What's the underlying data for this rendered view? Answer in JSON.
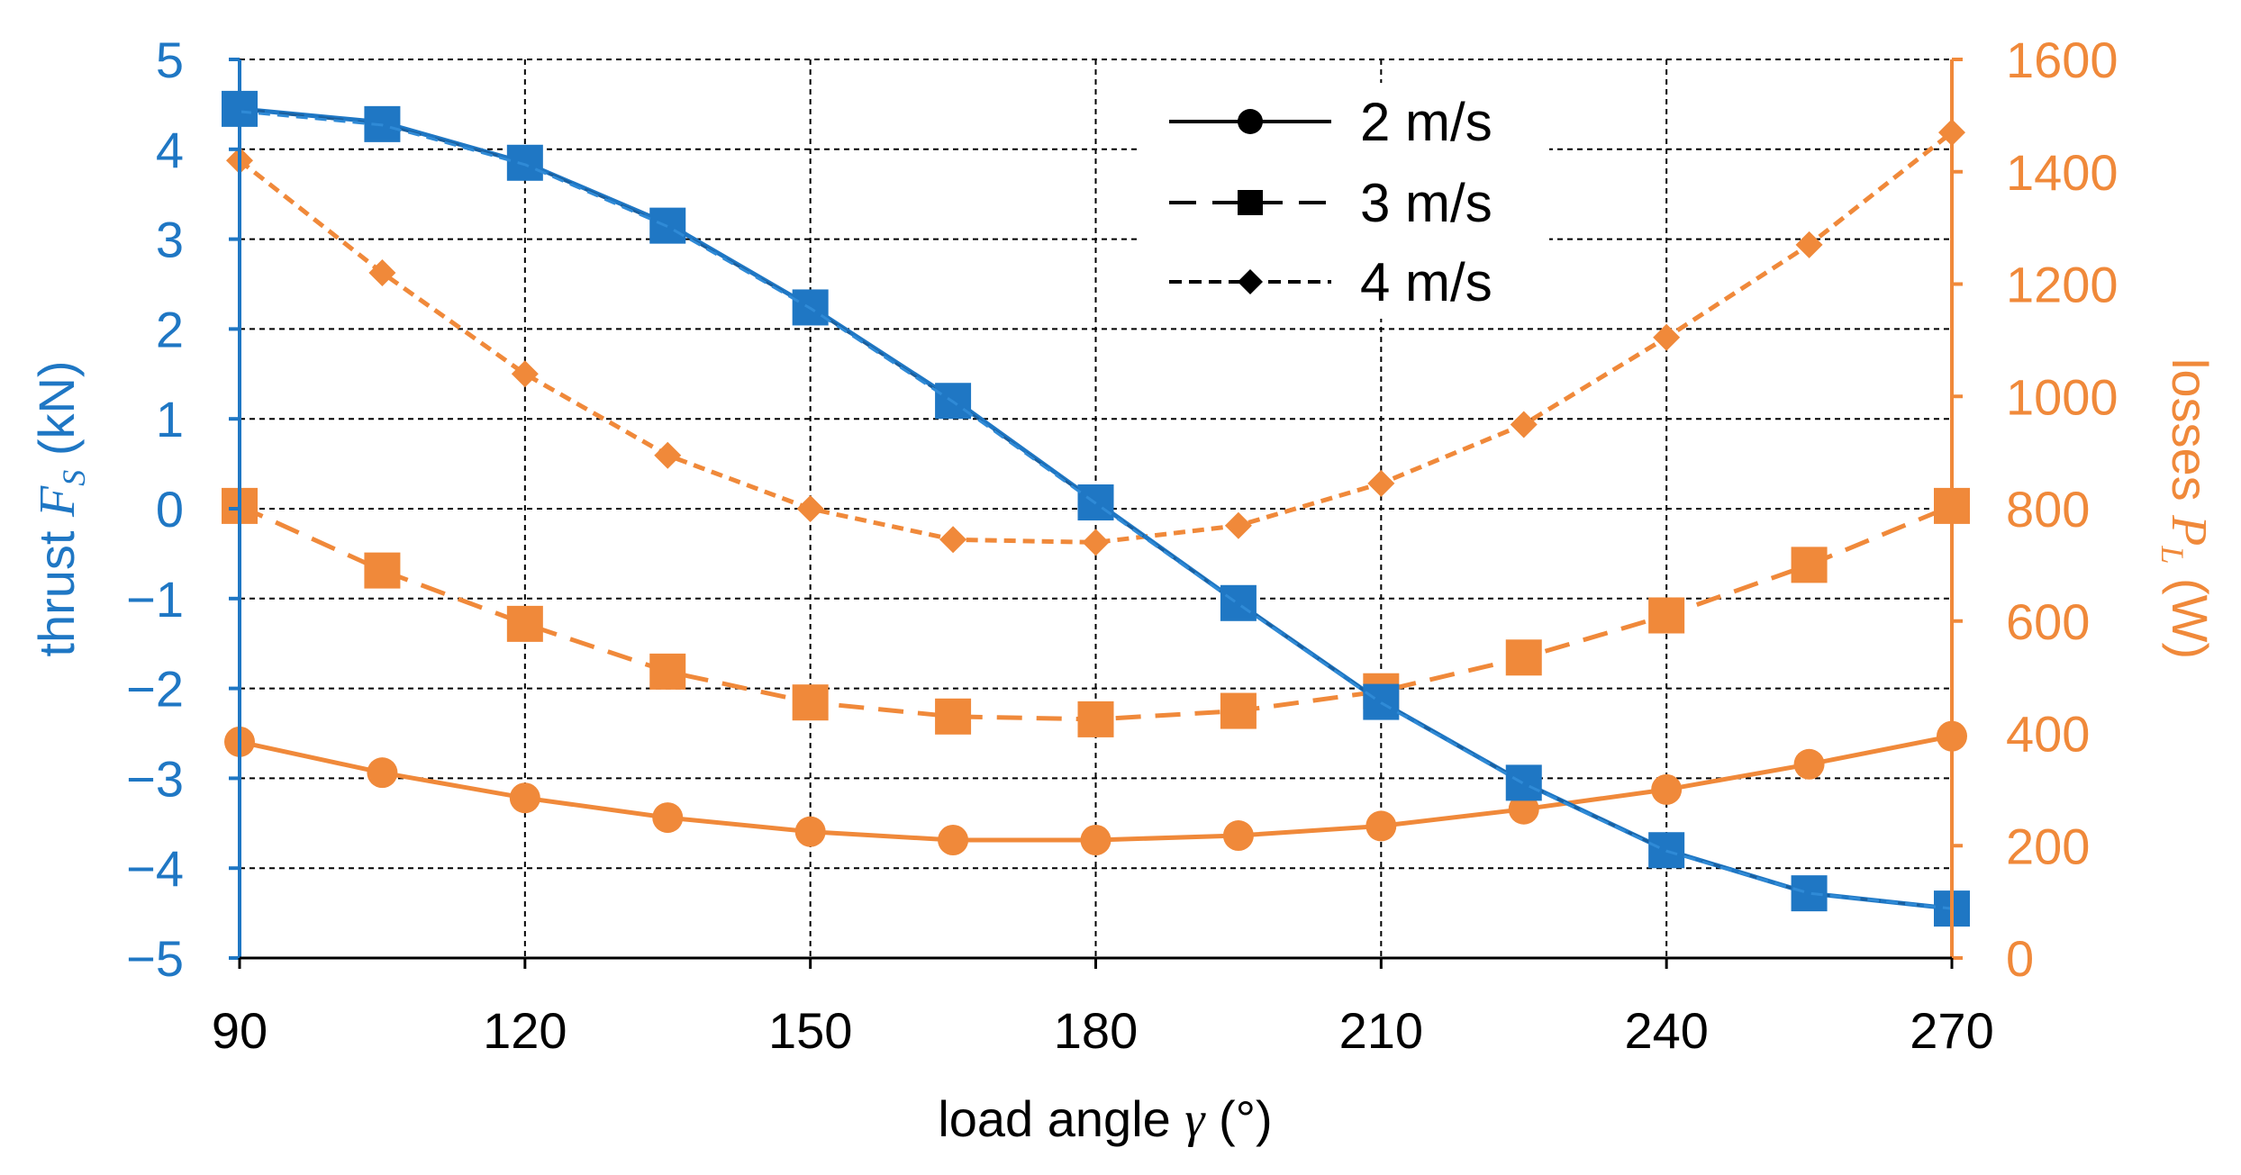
{
  "chart_data": {
    "type": "line",
    "x": [
      90,
      105,
      120,
      135,
      150,
      165,
      180,
      195,
      210,
      225,
      240,
      255,
      270
    ],
    "xlabel_prefix": "load angle ",
    "xlabel_symbol": "γ",
    "xlabel_suffix": " (°)",
    "xlim": [
      90,
      270
    ],
    "xticks": [
      90,
      120,
      150,
      180,
      210,
      240,
      270
    ],
    "y_left": {
      "label_prefix": "thrust ",
      "label_symbol": "F",
      "label_subscript": "S",
      "label_suffix": " (kN)",
      "lim": [
        -5,
        5
      ],
      "ticks": [
        5,
        4,
        3,
        2,
        1,
        0,
        -1,
        -2,
        -3,
        -4,
        -5
      ],
      "tick_labels": [
        "5",
        "4",
        "3",
        "2",
        "1",
        "0",
        "−1",
        "−2",
        "−3",
        "−4",
        "−5"
      ],
      "color": "#1f77c4"
    },
    "y_right": {
      "label_prefix": "losses ",
      "label_symbol": "P",
      "label_subscript": "L",
      "label_suffix": " (W)",
      "lim": [
        0,
        1600
      ],
      "ticks": [
        0,
        200,
        400,
        600,
        800,
        1000,
        1200,
        1400,
        1600
      ],
      "color": "#f0893a"
    },
    "grid": true,
    "legend": {
      "position": "top-center",
      "entries": [
        {
          "label": "2 m/s",
          "line": "solid",
          "marker": "circle"
        },
        {
          "label": "3 m/s",
          "line": "dashed",
          "marker": "square"
        },
        {
          "label": "4 m/s",
          "line": "dotted",
          "marker": "diamond"
        }
      ]
    },
    "series": [
      {
        "name": "thrust 2 m/s",
        "axis": "left",
        "line": "solid",
        "marker": "none",
        "values": [
          4.45,
          4.3,
          3.85,
          3.17,
          2.25,
          1.22,
          0.08,
          -1.05,
          -2.15,
          -3.05,
          -3.8,
          -4.28,
          -4.45
        ]
      },
      {
        "name": "thrust 3 m/s",
        "axis": "left",
        "line": "dashed",
        "marker": "square",
        "values": [
          4.45,
          4.28,
          3.85,
          3.15,
          2.24,
          1.2,
          0.07,
          -1.05,
          -2.15,
          -3.05,
          -3.8,
          -4.28,
          -4.45
        ]
      },
      {
        "name": "thrust 4 m/s",
        "axis": "left",
        "line": "dotted",
        "marker": "none",
        "values": [
          4.42,
          4.27,
          3.83,
          3.14,
          2.23,
          1.19,
          0.06,
          -1.06,
          -2.16,
          -3.06,
          -3.81,
          -4.28,
          -4.45
        ]
      },
      {
        "name": "losses 2 m/s",
        "axis": "right",
        "line": "solid",
        "marker": "circle",
        "values": [
          385,
          330,
          285,
          250,
          225,
          210,
          210,
          218,
          235,
          265,
          300,
          345,
          395
        ]
      },
      {
        "name": "losses 3 m/s",
        "axis": "right",
        "line": "dashed",
        "marker": "square",
        "values": [
          805,
          690,
          595,
          510,
          455,
          430,
          425,
          440,
          475,
          535,
          610,
          700,
          805
        ]
      },
      {
        "name": "losses 4 m/s",
        "axis": "right",
        "line": "dotted",
        "marker": "diamond",
        "values": [
          1420,
          1220,
          1040,
          895,
          800,
          745,
          740,
          770,
          845,
          950,
          1105,
          1270,
          1470
        ]
      }
    ]
  }
}
